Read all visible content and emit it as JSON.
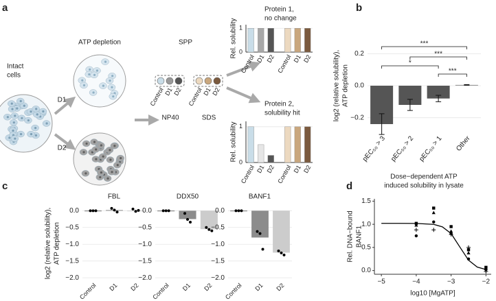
{
  "panel_labels": [
    "a",
    "b",
    "c",
    "d"
  ],
  "diagram": {
    "intact": [
      "Intact",
      "cells"
    ],
    "depletion": "ATP depletion",
    "doses": [
      "D1",
      "D2"
    ],
    "method": "SPP",
    "tube_labels": [
      "Control",
      "D1",
      "D2",
      "Control",
      "D1",
      "D2"
    ],
    "detergents": [
      "NP40",
      "SDS"
    ]
  },
  "chart_data": [
    {
      "type": "bar",
      "title": [
        "Protein 1,",
        "no change"
      ],
      "ylabel": "Rel. solubility",
      "categories": [
        "Control",
        "D1",
        "D2",
        "Control",
        "D1",
        "D2"
      ],
      "values": [
        1,
        1,
        1,
        1,
        1,
        1
      ],
      "colors": [
        "#c9dde8",
        "#a8a8a8",
        "#555555",
        "#ecd9c0",
        "#c9a77e",
        "#7b5a3e"
      ],
      "ylim": [
        0,
        1.15
      ],
      "yticks": [
        0,
        1
      ],
      "grid": true
    },
    {
      "type": "bar",
      "title": [
        "Protein 2,",
        "solubility hit"
      ],
      "ylabel": "Rel. solubility",
      "categories": [
        "Control",
        "D1",
        "D2",
        "Control",
        "D1",
        "D2"
      ],
      "values": [
        1,
        0.5,
        0.2,
        1,
        1,
        1
      ],
      "colors": [
        "#c9dde8",
        "#e6e6e6",
        "#555555",
        "#ecd9c0",
        "#c9a77e",
        "#7b5a3e"
      ],
      "ylim": [
        0,
        1.15
      ],
      "yticks": [
        0,
        1
      ],
      "grid": true
    },
    {
      "type": "bar",
      "ylabel": [
        "log2 (relative solubility),",
        "ATP depletion"
      ],
      "xlabel": [
        "Dose−dependent ATP",
        "induced solubility in lysate"
      ],
      "categories": [
        "pEC₅₀ > 3",
        "pEC₅₀ > 2",
        "pEC₅₀ > 1",
        "Other"
      ],
      "values": [
        -0.24,
        -0.12,
        -0.08,
        0.005
      ],
      "errors": [
        0.065,
        0.035,
        0.02,
        0.002
      ],
      "colors": [
        "#555555",
        "#555555",
        "#555555",
        "#999999"
      ],
      "ylim": [
        -0.3,
        0.3
      ],
      "yticks": [
        {
          "value": -0.2,
          "label": "−0.2"
        },
        {
          "value": 0,
          "label": "0.0"
        },
        0.2
      ],
      "grid": true,
      "significance": [
        "***",
        "***",
        "*",
        "***"
      ]
    },
    {
      "type": "bar_dots",
      "title": "FBL",
      "ylabel": [
        "log2 (relative solubility),",
        "ATP depletion"
      ],
      "categories": [
        "Control",
        "D1",
        "D2"
      ],
      "values": [
        0,
        0.02,
        0
      ],
      "points": [
        [
          0,
          0,
          0
        ],
        [
          0.07,
          0.02,
          -0.04
        ],
        [
          0.05,
          -0.02,
          0.01
        ]
      ],
      "colors": [
        "#555555",
        "#8c8c8c",
        "#cccccc"
      ],
      "ylim": [
        -2.1,
        0.15
      ],
      "yticks": [
        {
          "value": 0,
          "label": "0.0"
        },
        {
          "value": -0.5,
          "label": "−0.5"
        },
        {
          "value": -1,
          "label": "−1.0"
        },
        {
          "value": -1.5,
          "label": "−1.5"
        },
        {
          "value": -2,
          "label": "−2.0"
        }
      ],
      "grid": true
    },
    {
      "type": "bar_dots",
      "title": "DDX50",
      "categories": [
        "Control",
        "D1",
        "D2"
      ],
      "values": [
        0,
        -0.25,
        -0.55
      ],
      "points": [
        [
          0,
          0,
          0
        ],
        [
          -0.08,
          -0.26,
          -0.34
        ],
        [
          -0.5,
          -0.56,
          -0.6
        ]
      ],
      "colors": [
        "#555555",
        "#8c8c8c",
        "#cccccc"
      ],
      "ylim": [
        -2.1,
        0.15
      ],
      "yticks": [
        {
          "value": 0,
          "label": "0.0"
        },
        {
          "value": -0.5,
          "label": "−0.5"
        },
        {
          "value": -1,
          "label": "−1.0"
        },
        {
          "value": -1.5,
          "label": "−1.5"
        },
        {
          "value": -2,
          "label": "−2.0"
        }
      ],
      "grid": true
    },
    {
      "type": "bar_dots",
      "title": "BANF1",
      "categories": [
        "Control",
        "D1",
        "D2"
      ],
      "values": [
        0,
        -0.8,
        -1.25
      ],
      "points": [
        [
          0,
          0,
          0
        ],
        [
          -0.62,
          -0.68,
          -1.15
        ],
        [
          -1.2,
          -1.26,
          -1.32
        ]
      ],
      "colors": [
        "#555555",
        "#8c8c8c",
        "#cccccc"
      ],
      "ylim": [
        -2.1,
        0.15
      ],
      "yticks": [
        {
          "value": 0,
          "label": "0.0"
        },
        {
          "value": -0.5,
          "label": "−0.5"
        },
        {
          "value": -1,
          "label": "−1.0"
        },
        {
          "value": -1.5,
          "label": "−1.5"
        },
        {
          "value": -2,
          "label": "−2.0"
        }
      ],
      "grid": true
    },
    {
      "type": "scatter",
      "ylabel": [
        "Rel. DNA−bound",
        "BANF1"
      ],
      "xlabel": "log10 [MgATP]",
      "x": [
        -4,
        -4,
        -4,
        -4,
        -3.5,
        -3.5,
        -3.5,
        -3.5,
        -3,
        -3,
        -3,
        -3,
        -2.5,
        -2.5,
        -2.5,
        -2.5,
        -2,
        -2,
        -2,
        -2
      ],
      "y": [
        1.02,
        0.98,
        0.88,
        0.75,
        1.35,
        1.25,
        1.05,
        0.88,
        0.95,
        0.85,
        0.8,
        0.78,
        0.5,
        0.45,
        0.38,
        0.25,
        0.07,
        0.04,
        0.02,
        -0.02
      ],
      "markers": [
        "square",
        "triangle",
        "cross",
        "circle",
        "square",
        "triangle",
        "circle",
        "cross",
        "square",
        "triangle",
        "circle",
        "cross",
        "cross",
        "square",
        "triangle",
        "circle",
        "square",
        "triangle",
        "circle",
        "cross"
      ],
      "fit": {
        "x": [
          -5,
          -4.5,
          -4,
          -3.5,
          -3.25,
          -3,
          -2.75,
          -2.5,
          -2.25,
          -2
        ],
        "y": [
          1.02,
          1.02,
          1.018,
          0.998,
          0.945,
          0.8,
          0.51,
          0.224,
          0.075,
          0.022
        ]
      },
      "color": "#000000",
      "xlim": [
        -5.2,
        -1.85
      ],
      "xticks": [
        {
          "value": -5,
          "label": "−5"
        },
        {
          "value": -4,
          "label": "−4"
        },
        {
          "value": -3,
          "label": "−3"
        },
        {
          "value": -2,
          "label": "−2"
        }
      ],
      "ylim": [
        -0.08,
        1.55
      ],
      "yticks": [
        {
          "value": 0,
          "label": "0.0"
        },
        0.5,
        {
          "value": 1,
          "label": "1.0"
        },
        1.5
      ],
      "grid": false
    }
  ]
}
